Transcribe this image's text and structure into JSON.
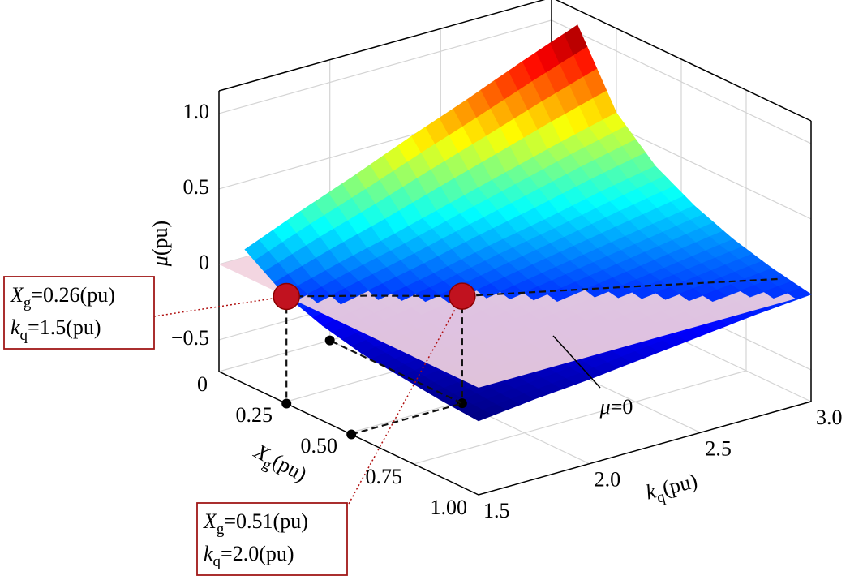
{
  "chart_data": {
    "type": "surface3d",
    "xlabel": [
      "X",
      "g",
      "(pu)"
    ],
    "ylabel": [
      "k",
      "q",
      "(pu)"
    ],
    "zlabel": [
      "μ",
      "(pu)"
    ],
    "xlim": [
      0,
      1
    ],
    "xticks": [
      0,
      0.25,
      {
        "value": 0.5,
        "label": "0.50"
      },
      0.75,
      {
        "value": 1,
        "label": "1.00"
      }
    ],
    "ylim": [
      1.5,
      3
    ],
    "yticks": [
      1.5,
      {
        "value": 2,
        "label": "2.0"
      },
      2.5,
      {
        "value": 3,
        "label": "3.0"
      }
    ],
    "zlim": [
      -0.71,
      1.15
    ],
    "zticks": [
      {
        "value": -0.5,
        "label": "−0.5"
      },
      0,
      0.5,
      {
        "value": 1,
        "label": "1.0"
      }
    ],
    "grid": true,
    "colormap": "jet",
    "surface": {
      "x": [
        0.1,
        0.25,
        0.4,
        0.55,
        0.7,
        0.85,
        1.0
      ],
      "y": [
        1.5,
        1.75,
        2.0,
        2.25,
        2.5,
        2.75,
        3.0
      ],
      "z": [
        [
          0.18,
          0.33,
          0.47,
          0.62,
          0.76,
          0.91,
          1.05
        ],
        [
          0.01,
          0.11,
          0.2,
          0.3,
          0.4,
          0.5,
          0.59
        ],
        [
          -0.08,
          -0.01,
          0.06,
          0.14,
          0.21,
          0.29,
          0.36
        ],
        [
          -0.14,
          -0.08,
          -0.02,
          0.04,
          0.1,
          0.16,
          0.22
        ],
        [
          -0.17,
          -0.12,
          -0.08,
          -0.03,
          0.02,
          0.07,
          0.12
        ],
        [
          -0.2,
          -0.16,
          -0.12,
          -0.07,
          -0.03,
          0.01,
          0.05
        ],
        [
          -0.22,
          -0.18,
          -0.15,
          -0.11,
          -0.07,
          -0.03,
          0.0
        ]
      ]
    },
    "plane": {
      "z": 0,
      "color": "#f2d3de",
      "label": [
        "μ",
        "=0"
      ]
    },
    "contour": {
      "x": [
        0.26,
        0.38,
        0.51,
        0.69,
        0.875
      ],
      "y": [
        1.5,
        1.75,
        2.0,
        2.5,
        3.0
      ]
    },
    "points": [
      {
        "x": 0.26,
        "y": 1.5,
        "z": 0,
        "color": "#c1121f",
        "annotation": [
          [
            "X",
            "g",
            "=0.26(pu)"
          ],
          [
            "k",
            "q",
            "=1.5(pu)"
          ]
        ]
      },
      {
        "x": 0.51,
        "y": 2.0,
        "z": 0,
        "color": "#c1121f",
        "annotation": [
          [
            "X",
            "g",
            "=0.51(pu)"
          ],
          [
            "k",
            "q",
            "=2.0(pu)"
          ]
        ]
      }
    ]
  }
}
